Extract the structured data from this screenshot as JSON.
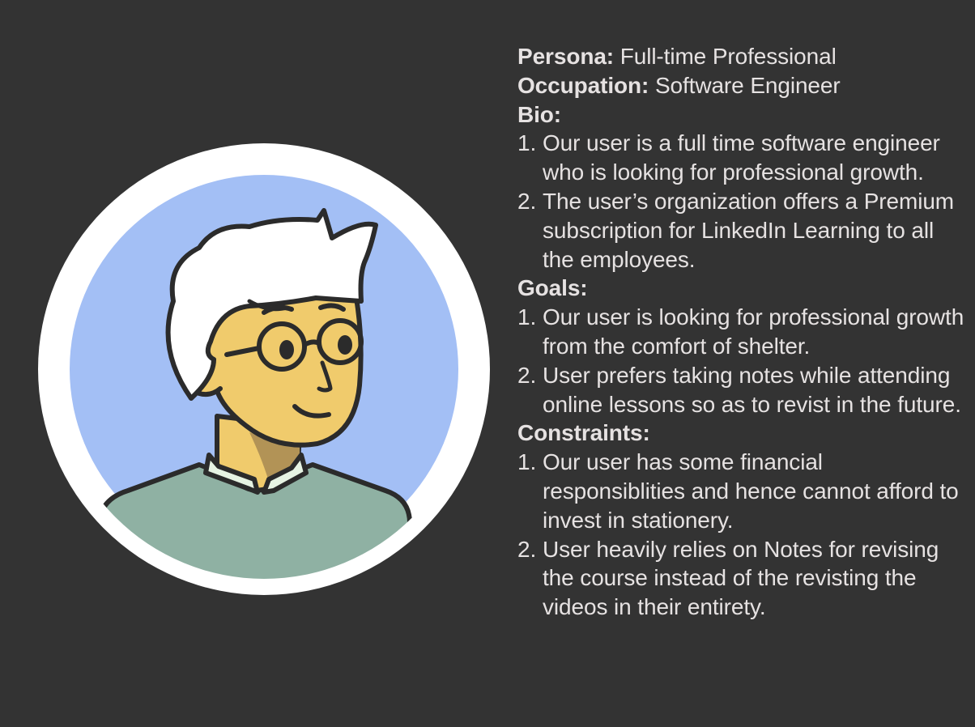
{
  "persona": {
    "label": "Persona:",
    "value": "Full-time Professional"
  },
  "occupation": {
    "label": "Occupation:",
    "value": "Software Engineer"
  },
  "bio": {
    "label": "Bio:",
    "items": [
      {
        "num": "1.",
        "text": "Our user is a full time software engineer who is looking for professional growth."
      },
      {
        "num": "2.",
        "text": "The user’s organization offers a Premium subscription for LinkedIn Learning to all the employees."
      }
    ]
  },
  "goals": {
    "label": "Goals:",
    "items": [
      {
        "num": "1.",
        "text": "Our user is looking for professional growth from the comfort of shelter."
      },
      {
        "num": "2.",
        "text": "User prefers taking notes while attending online lessons so as to revist  in the future."
      }
    ]
  },
  "constraints": {
    "label": "Constraints:",
    "items": [
      {
        "num": "1.",
        "text": "Our  user has some financial responsiblities and hence cannot afford to invest in stationery."
      },
      {
        "num": "2.",
        "text": "User  heavily relies on Notes for revising the course instead of the revisting the videos in their entirety."
      }
    ]
  },
  "colors": {
    "background": "#333333",
    "text": "#e6e2e2",
    "avatar_ring": "#ffffff",
    "avatar_bg": "#a3bff5",
    "skin": "#f0cb6c",
    "hair": "#ffffff",
    "shirt": "#8fb1a3",
    "collar": "#e6f3e3",
    "outline": "#2b2b2b"
  }
}
